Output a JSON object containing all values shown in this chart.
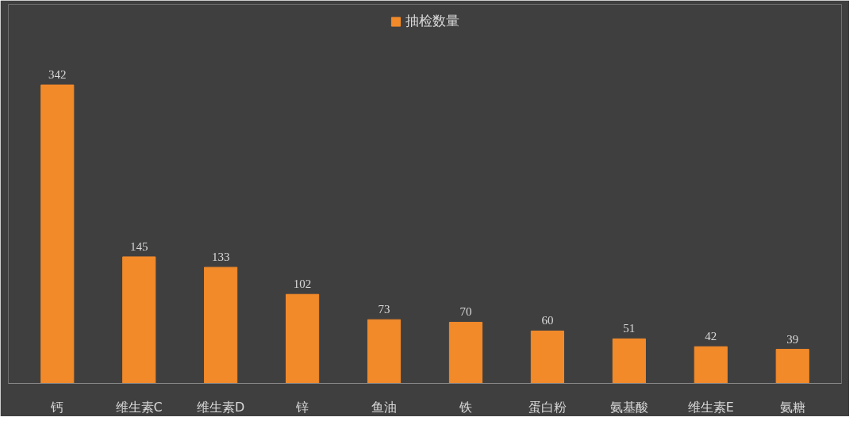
{
  "chart_data": {
    "type": "bar",
    "categories": [
      "钙",
      "维生素C",
      "维生素D",
      "锌",
      "鱼油",
      "铁",
      "蛋白粉",
      "氨基酸",
      "维生素E",
      "氨糖"
    ],
    "series": [
      {
        "name": "抽检数量",
        "color": "#f28a2a",
        "values": [
          342,
          145,
          133,
          102,
          73,
          70,
          60,
          51,
          42,
          39
        ]
      }
    ],
    "data_labels": true,
    "legend": "top",
    "grid": false,
    "tick_labels": "x"
  }
}
